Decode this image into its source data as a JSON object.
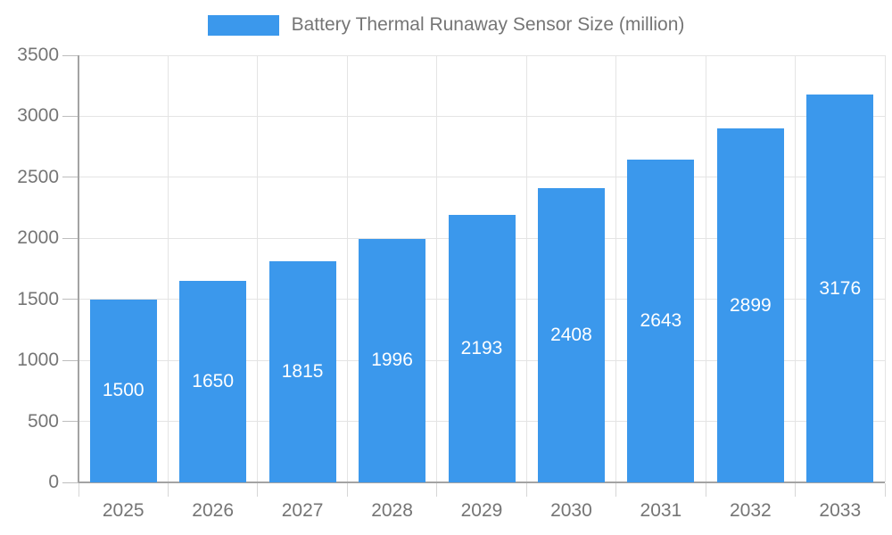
{
  "legend": {
    "label": "Battery Thermal Runaway Sensor Size (million)"
  },
  "chart_data": {
    "type": "bar",
    "title": "Battery Thermal Runaway Sensor Size (million)",
    "categories": [
      "2025",
      "2026",
      "2027",
      "2028",
      "2029",
      "2030",
      "2031",
      "2032",
      "2033"
    ],
    "values": [
      1500,
      1650,
      1815,
      1996,
      2193,
      2408,
      2643,
      2899,
      3176
    ],
    "xlabel": "",
    "ylabel": "",
    "ylim": [
      0,
      3500
    ],
    "yticks": [
      0,
      500,
      1000,
      1500,
      2000,
      2500,
      3000,
      3500
    ],
    "grid": true,
    "legend_position": "top-center",
    "value_labels": "inside-center",
    "colors": {
      "bar": "#3b98ec",
      "value_label": "#ffffff",
      "axis_text": "#757575",
      "gridline": "#e4e4e4",
      "axis_line": "#a3a3a3"
    }
  }
}
